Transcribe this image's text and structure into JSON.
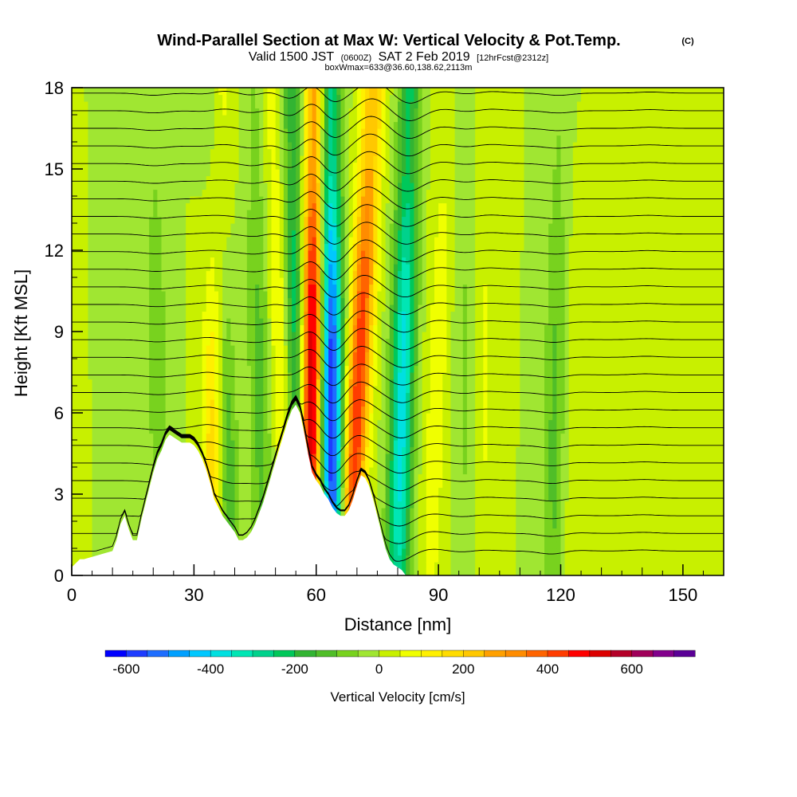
{
  "header": {
    "title": "Wind-Parallel Section at Max W: Vertical Velocity & Pot.Temp.",
    "copyright": "(C)",
    "valid_prefix": "Valid 1500 JST",
    "utc_time": "(0600Z)",
    "valid_date": "SAT 2 Feb 2019",
    "forecast_info": "[12hrFcst@2312z]",
    "box_info": "boxWmax=633@36.60,138.62,2113m"
  },
  "chart_data": {
    "type": "heatmap",
    "xlabel": "Distance [nm]",
    "ylabel": "Height [Kft MSL]",
    "xlim": [
      0,
      160
    ],
    "ylim": [
      0,
      18
    ],
    "x_ticks": [
      "0",
      "30",
      "60",
      "90",
      "120",
      "150"
    ],
    "y_ticks": [
      "0",
      "3",
      "6",
      "9",
      "12",
      "15",
      "18"
    ],
    "terrain_profile": {
      "x": [
        0,
        2,
        3,
        10,
        11,
        12,
        13,
        14,
        15,
        16,
        17,
        18,
        19,
        20,
        21,
        22,
        23,
        24,
        27,
        29,
        30,
        31,
        32,
        33,
        34,
        35,
        36,
        37,
        38,
        39,
        40,
        41,
        42,
        43,
        44,
        45,
        46,
        47,
        48,
        49,
        50,
        51,
        52,
        53,
        54,
        55,
        56,
        57,
        58,
        59,
        60,
        61,
        62,
        63,
        64,
        65,
        66,
        67,
        68,
        69,
        70,
        71,
        72,
        73,
        74,
        75,
        76,
        77,
        78,
        79,
        80,
        81,
        82
      ],
      "y": [
        0.3,
        0.6,
        0.6,
        0.9,
        1.3,
        1.9,
        2.2,
        1.7,
        1.3,
        1.3,
        2.0,
        2.6,
        3.2,
        3.8,
        4.3,
        4.6,
        5.0,
        5.2,
        4.9,
        4.9,
        4.8,
        4.6,
        4.3,
        3.9,
        3.4,
        2.8,
        2.5,
        2.2,
        2.0,
        1.8,
        1.6,
        1.3,
        1.3,
        1.4,
        1.6,
        1.9,
        2.3,
        2.7,
        3.2,
        3.7,
        4.2,
        4.7,
        5.2,
        5.7,
        6.1,
        6.3,
        6.0,
        5.3,
        4.5,
        3.8,
        3.5,
        3.3,
        3.0,
        2.8,
        2.5,
        2.3,
        2.2,
        2.2,
        2.4,
        2.8,
        3.3,
        3.7,
        3.6,
        3.3,
        2.8,
        2.2,
        1.6,
        1.0,
        0.6,
        0.4,
        0.3,
        0.2,
        0
      ]
    },
    "updraft_columns": [
      {
        "x_base": 35,
        "x_top": 36,
        "w": 300
      },
      {
        "x_base": 58,
        "x_top": 60,
        "w": 640
      },
      {
        "x_base": 68,
        "x_top": 74,
        "w": 450
      },
      {
        "x_base": 54,
        "x_top": 49,
        "w": 150
      },
      {
        "x_base": 88,
        "x_top": 92,
        "w": 80
      },
      {
        "x_base": 100,
        "x_top": 103,
        "w": 60
      },
      {
        "x_base": 123,
        "x_top": 121,
        "w": 40
      },
      {
        "x_base": 140,
        "x_top": 142,
        "w": 40
      }
    ],
    "downdraft_columns": [
      {
        "x_base": 38,
        "x_top": 35,
        "w": -260
      },
      {
        "x_base": 56,
        "x_top": 54,
        "w": -320
      },
      {
        "x_base": 64,
        "x_top": 63,
        "w": -620
      },
      {
        "x_base": 80,
        "x_top": 83,
        "w": -380
      },
      {
        "x_base": 47,
        "x_top": 45,
        "w": -120
      },
      {
        "x_base": 118,
        "x_top": 120,
        "w": -120
      },
      {
        "x_base": 97,
        "x_top": 96,
        "w": -60
      },
      {
        "x_base": 22,
        "x_top": 20,
        "w": -80
      }
    ],
    "theta_isentropes": 30
  },
  "colorbar": {
    "label": "Vertical Velocity [cm/s]",
    "tick_labels": [
      "-600",
      "-400",
      "-200",
      "0",
      "200",
      "400",
      "600"
    ],
    "tick_values": [
      -600,
      -400,
      -200,
      0,
      200,
      400,
      600
    ],
    "vmin": -650,
    "vmax": 750,
    "colors": [
      "#0000ff",
      "#1e3cff",
      "#1e6eff",
      "#00a0ff",
      "#00c8ff",
      "#00e0e0",
      "#00e6b4",
      "#00d28c",
      "#00c85a",
      "#32b432",
      "#50be28",
      "#78d21e",
      "#a0e632",
      "#c8f000",
      "#f0ff00",
      "#fff000",
      "#ffdc00",
      "#ffc800",
      "#ffa000",
      "#ff8c00",
      "#ff6400",
      "#ff3c00",
      "#ff0000",
      "#dc0000",
      "#b40028",
      "#a0005a",
      "#82008c",
      "#5a0096"
    ]
  }
}
